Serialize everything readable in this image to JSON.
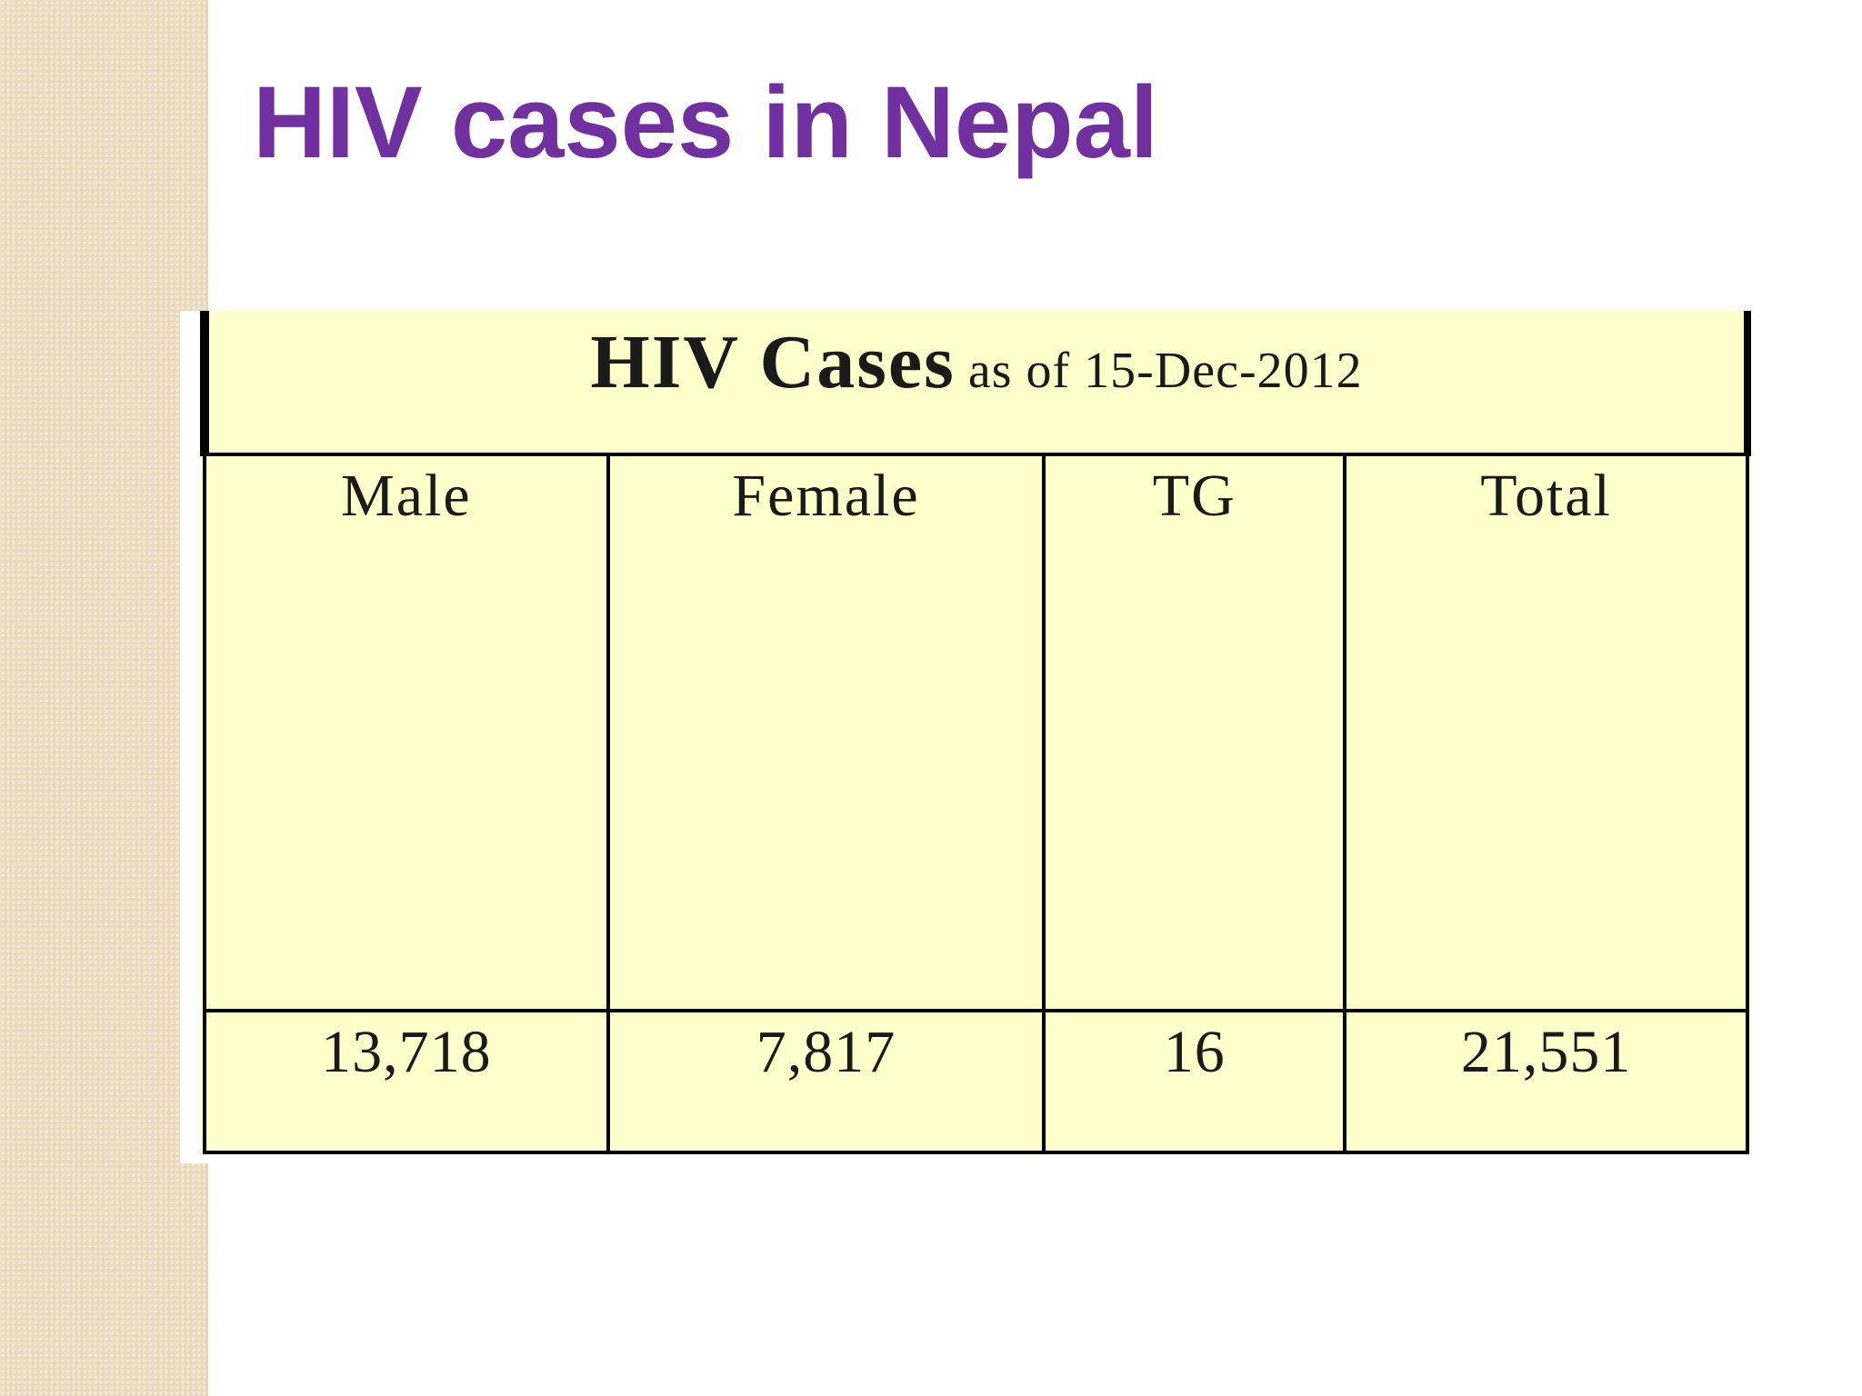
{
  "slide": {
    "title": "HIV cases in Nepal"
  },
  "table": {
    "title_main": "HIV Cases",
    "title_sub": "as of  15-Dec-2012",
    "headers": [
      "Male",
      "Female",
      "TG",
      "Total"
    ],
    "values": [
      "13,718",
      "7,817",
      "16",
      "21,551"
    ]
  },
  "colors": {
    "title": "#7030a0",
    "table_background": "#ffffcc",
    "side_band": "#ecdcbf"
  }
}
